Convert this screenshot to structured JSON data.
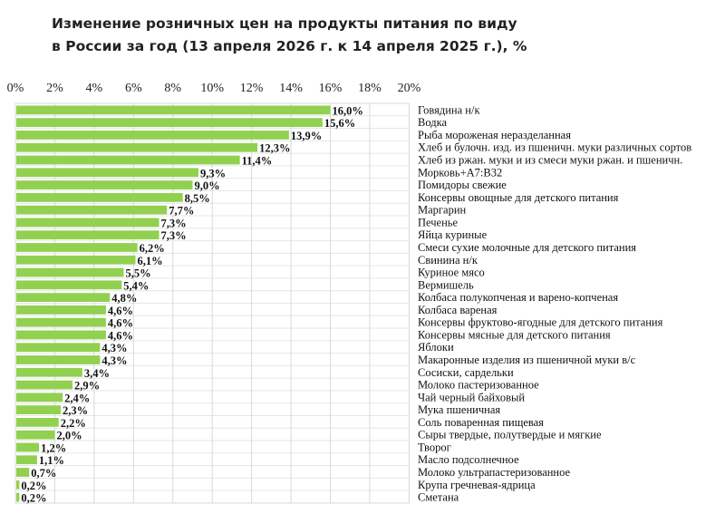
{
  "chart_data": {
    "type": "bar",
    "orientation": "horizontal",
    "title_lines": [
      "Изменение розничных цен на продукты питания по виду",
      "в России за год (13 апреля 2026 г. к 14 апреля 2025 г.), %"
    ],
    "xlim": [
      0,
      20
    ],
    "xticks": [
      "0%",
      "2%",
      "4%",
      "6%",
      "8%",
      "10%",
      "12%",
      "14%",
      "16%",
      "18%",
      "20%"
    ],
    "xaxis_position": "top",
    "grid": true,
    "bar_color": "#92d050",
    "categories": [
      "Говядина н/к",
      "Водка",
      "Рыба мороженая неразделанная",
      "Хлеб и булочн. изд. из пшеничн. муки различных сортов",
      "Хлеб из ржан. муки и из смеси муки ржан. и пшеничн.",
      "Морковь+A7:B32",
      "Помидоры свежие",
      "Консервы овощные для детского питания",
      "Маргарин",
      "Печенье",
      "Яйца куриные",
      "Смеси сухие молочные для детского питания",
      "Свинина н/к",
      "Куриное мясо",
      "Вермишель",
      "Колбаса полукопченая и варено-копченая",
      "Колбаса вареная",
      "Консервы фруктово-ягодные для детского питания",
      "Консервы мясные для детского питания",
      "Яблоки",
      "Макаронные изделия из пшеничной муки в/с",
      "Сосиски, сардельки",
      "Молоко пастеризованное",
      "Чай черный байховый",
      "Мука пшеничная",
      "Соль поваренная пищевая",
      "Сыры твердые, полутвердые и мягкие",
      "Творог",
      "Масло подсолнечное",
      "Молоко ультрапастеризованное",
      "Крупа гречневая-ядрица",
      "Сметана"
    ],
    "values": [
      16.0,
      15.6,
      13.9,
      12.3,
      11.4,
      9.3,
      9.0,
      8.5,
      7.7,
      7.3,
      7.3,
      6.2,
      6.1,
      5.5,
      5.4,
      4.8,
      4.6,
      4.6,
      4.6,
      4.3,
      4.3,
      3.4,
      2.9,
      2.4,
      2.3,
      2.2,
      2.0,
      1.2,
      1.1,
      0.7,
      0.2,
      0.2
    ],
    "data_labels": [
      "16,0%",
      "15,6%",
      "13,9%",
      "12,3%",
      "11,4%",
      "9,3%",
      "9,0%",
      "8,5%",
      "7,7%",
      "7,3%",
      "7,3%",
      "6,2%",
      "6,1%",
      "5,5%",
      "5,4%",
      "4,8%",
      "4,6%",
      "4,6%",
      "4,6%",
      "4,3%",
      "4,3%",
      "3,4%",
      "2,9%",
      "2,4%",
      "2,3%",
      "2,2%",
      "2,0%",
      "1,2%",
      "1,1%",
      "0,7%",
      "0,2%",
      "0,2%"
    ]
  }
}
